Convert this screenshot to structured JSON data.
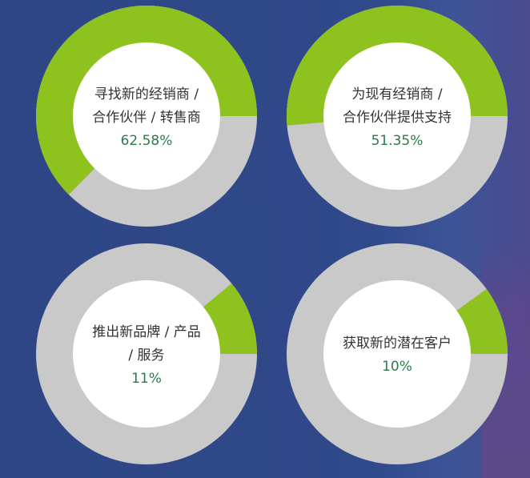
{
  "colors": {
    "highlight": "#8dc21f",
    "rest": "#c9c9c9",
    "center": "#ffffff",
    "value_text": "#2d7a4d"
  },
  "chart_data": {
    "type": "pie",
    "variant": "donut",
    "charts": [
      {
        "label_lines": [
          "寻找新的经销商 /",
          "合作伙伴 / 转售商"
        ],
        "value": 62.58,
        "value_label": "62.58%"
      },
      {
        "label_lines": [
          "为现有经销商 /",
          "合作伙伴提供支持"
        ],
        "value": 51.35,
        "value_label": "51.35%"
      },
      {
        "label_lines": [
          "推出新品牌 / 产品",
          "/ 服务"
        ],
        "value": 11,
        "value_label": "11%"
      },
      {
        "label_lines": [
          "获取新的潜在客户"
        ],
        "value": 10,
        "value_label": "10%"
      }
    ]
  }
}
